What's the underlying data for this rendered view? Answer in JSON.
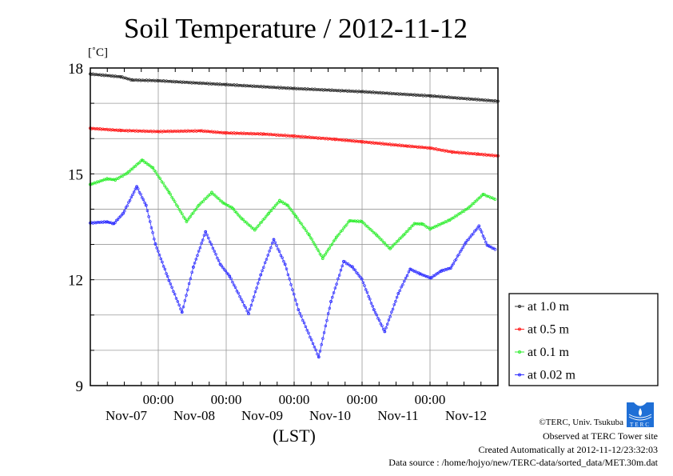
{
  "chart_data": {
    "type": "line",
    "title": "Soil Temperature / 2012-11-12",
    "ylabel": "[˚C]",
    "xlabel": "(LST)",
    "x_units": "hours relative to Nov-07 00:00 (LST)",
    "xlim": [
      -24,
      120
    ],
    "ylim": [
      9,
      18
    ],
    "yticks": [
      9,
      12,
      15,
      18
    ],
    "ygrid_step": 1,
    "xgrid_hours": [
      0,
      24,
      48,
      72,
      96
    ],
    "xminor_tick_hours": 6,
    "xtick_labels": [
      {
        "x": 0,
        "time": "00:00",
        "date": "Nov-07"
      },
      {
        "x": 24,
        "time": "00:00",
        "date": "Nov-08"
      },
      {
        "x": 48,
        "time": "00:00",
        "date": "Nov-09"
      },
      {
        "x": 72,
        "time": "00:00",
        "date": "Nov-10"
      },
      {
        "x": 96,
        "time": "00:00",
        "date": "Nov-11"
      },
      {
        "x": 120,
        "time": "",
        "date": "Nov-12"
      }
    ],
    "grid": true,
    "legend_position": "right",
    "series": [
      {
        "name": "at 1.0 m",
        "color": "#333333",
        "points": [
          [
            -24,
            17.83
          ],
          [
            -13.2,
            17.75
          ],
          [
            -9.2,
            17.66
          ],
          [
            -0.1,
            17.64
          ],
          [
            23.8,
            17.53
          ],
          [
            47.8,
            17.42
          ],
          [
            71.9,
            17.33
          ],
          [
            96.1,
            17.21
          ],
          [
            120,
            17.06
          ]
        ]
      },
      {
        "name": "at 0.5 m",
        "color": "#ff2020",
        "points": [
          [
            -24,
            16.29
          ],
          [
            -13.2,
            16.23
          ],
          [
            -0.1,
            16.2
          ],
          [
            15,
            16.22
          ],
          [
            23.8,
            16.16
          ],
          [
            37.2,
            16.13
          ],
          [
            47.8,
            16.07
          ],
          [
            62.5,
            15.98
          ],
          [
            71.9,
            15.91
          ],
          [
            87.7,
            15.79
          ],
          [
            96.1,
            15.73
          ],
          [
            103.8,
            15.62
          ],
          [
            112.9,
            15.56
          ],
          [
            120,
            15.51
          ]
        ]
      },
      {
        "name": "at 0.1 m",
        "color": "#33ee33",
        "points": [
          [
            -24,
            14.7
          ],
          [
            -18.1,
            14.86
          ],
          [
            -15.2,
            14.83
          ],
          [
            -11,
            15.02
          ],
          [
            -5.7,
            15.39
          ],
          [
            -1.9,
            15.17
          ],
          [
            3.8,
            14.48
          ],
          [
            10,
            13.65
          ],
          [
            14.3,
            14.11
          ],
          [
            18.9,
            14.47
          ],
          [
            22.9,
            14.18
          ],
          [
            26.2,
            14.03
          ],
          [
            29.5,
            13.73
          ],
          [
            34.1,
            13.41
          ],
          [
            39,
            13.88
          ],
          [
            42.9,
            14.24
          ],
          [
            45.7,
            14.11
          ],
          [
            48.6,
            13.8
          ],
          [
            53.3,
            13.27
          ],
          [
            58.1,
            12.61
          ],
          [
            62.9,
            13.2
          ],
          [
            67.6,
            13.67
          ],
          [
            71.9,
            13.65
          ],
          [
            77.1,
            13.27
          ],
          [
            81.9,
            12.88
          ],
          [
            86.7,
            13.27
          ],
          [
            90.5,
            13.59
          ],
          [
            93.3,
            13.58
          ],
          [
            96,
            13.44
          ],
          [
            102.9,
            13.69
          ],
          [
            109.5,
            14.03
          ],
          [
            114.8,
            14.42
          ],
          [
            119,
            14.28
          ]
        ]
      },
      {
        "name": "at 0.02 m",
        "color": "#3333ff",
        "points": [
          [
            -24,
            13.61
          ],
          [
            -18.1,
            13.64
          ],
          [
            -15.7,
            13.59
          ],
          [
            -12.4,
            13.88
          ],
          [
            -7.6,
            14.64
          ],
          [
            -4.3,
            14.11
          ],
          [
            -1,
            13.01
          ],
          [
            3.8,
            11.98
          ],
          [
            8.4,
            11.08
          ],
          [
            12.4,
            12.36
          ],
          [
            16.7,
            13.36
          ],
          [
            21.9,
            12.44
          ],
          [
            25.2,
            12.1
          ],
          [
            31.9,
            11.04
          ],
          [
            36.2,
            12.14
          ],
          [
            40.8,
            13.14
          ],
          [
            44.8,
            12.44
          ],
          [
            49.5,
            11.15
          ],
          [
            56.7,
            9.81
          ],
          [
            61,
            11.38
          ],
          [
            65.5,
            12.52
          ],
          [
            68.6,
            12.36
          ],
          [
            71.9,
            12.02
          ],
          [
            76.2,
            11.15
          ],
          [
            80,
            10.53
          ],
          [
            84.8,
            11.61
          ],
          [
            89,
            12.3
          ],
          [
            92.4,
            12.17
          ],
          [
            96.2,
            12.05
          ],
          [
            100,
            12.25
          ],
          [
            103.3,
            12.33
          ],
          [
            108.6,
            13.05
          ],
          [
            113.3,
            13.52
          ],
          [
            116.2,
            12.98
          ],
          [
            119,
            12.86
          ]
        ]
      }
    ]
  },
  "footer": {
    "copyright": "©TERC, Univ. Tsukuba",
    "observed": "Observed at TERC Tower site",
    "created": "Created Automatically at 2012-11-12/23:32:03",
    "source": "Data source : /home/hojyo/new/TERC-data/sorted_data/MET.30m.dat",
    "logo_text": "TERC",
    "logo_color": "#1f6fd6"
  }
}
